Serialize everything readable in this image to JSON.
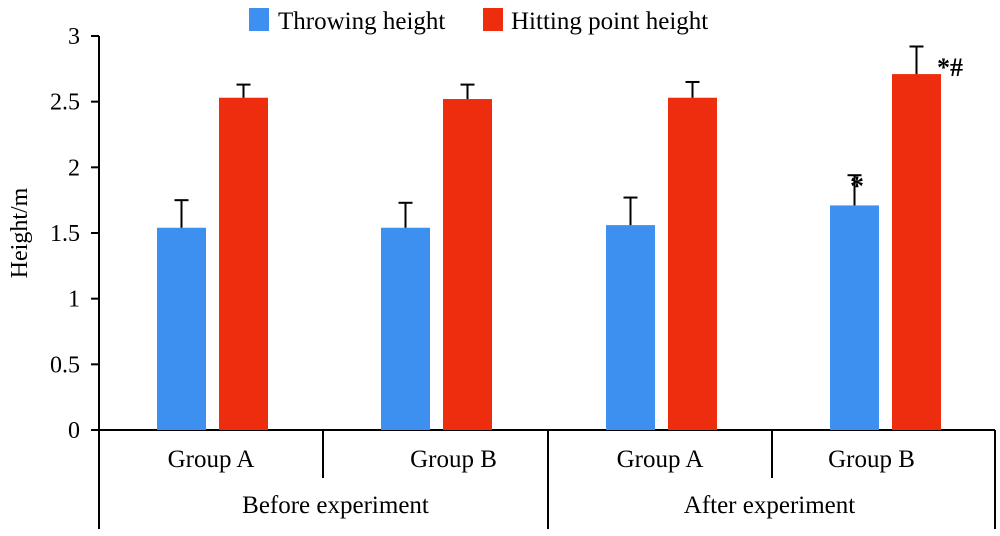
{
  "chart_data": {
    "type": "bar",
    "title": "",
    "xlabel": "",
    "ylabel": "Height/m",
    "ylim": [
      0,
      3
    ],
    "yticks": [
      0,
      0.5,
      1,
      1.5,
      2,
      2.5,
      3
    ],
    "ytick_labels": [
      "0",
      "0.5",
      "1",
      "1.5",
      "2",
      "2.5",
      "3"
    ],
    "grid": false,
    "legend_position": "top",
    "categories": [
      "Group A",
      "Group B",
      "Group A",
      "Group B"
    ],
    "category_groups": [
      {
        "label": "Before experiment",
        "members": [
          0,
          1
        ]
      },
      {
        "label": "After experiment",
        "members": [
          2,
          3
        ]
      }
    ],
    "series": [
      {
        "name": "Throwing height",
        "color": "#3d8ff0",
        "values": [
          1.54,
          1.54,
          1.56,
          1.71
        ],
        "errors": [
          0.21,
          0.19,
          0.21,
          0.23
        ],
        "annotations": [
          "",
          "",
          "",
          "*"
        ]
      },
      {
        "name": "Hitting point height",
        "color": "#ee2d0f",
        "values": [
          2.53,
          2.52,
          2.53,
          2.71
        ],
        "errors": [
          0.1,
          0.11,
          0.12,
          0.21
        ],
        "annotations": [
          "",
          "",
          "",
          "*#"
        ]
      }
    ]
  }
}
